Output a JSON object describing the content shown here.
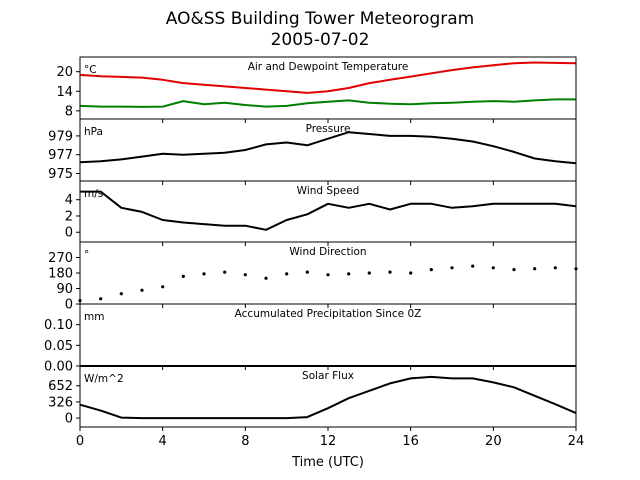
{
  "title": "AO&SS Building Tower Meteorogram",
  "subtitle": "2005-07-02",
  "xlabel": "Time (UTC)",
  "x_ticks": [
    "0",
    "4",
    "8",
    "12",
    "16",
    "20",
    "24"
  ],
  "colors": {
    "temperature": "#e00000",
    "dewpoint": "#008000",
    "line": "#000000"
  },
  "chart_data": [
    {
      "type": "line",
      "title": "Air and Dewpoint Temperature",
      "unit": "°C",
      "ylim": [
        5.5,
        24.5
      ],
      "yticks": [
        8,
        14,
        20
      ],
      "ytick_labels": [
        "8",
        "14",
        "20"
      ],
      "x": [
        0,
        1,
        2,
        3,
        4,
        5,
        6,
        7,
        8,
        9,
        10,
        11,
        12,
        13,
        14,
        15,
        16,
        17,
        18,
        19,
        20,
        21,
        22,
        23,
        24
      ],
      "series": [
        {
          "key": "temperature",
          "values": [
            19,
            18.6,
            18.4,
            18.2,
            17.5,
            16.5,
            16,
            15.5,
            15,
            14.5,
            14,
            13.5,
            14,
            15,
            16.5,
            17.5,
            18.5,
            19.5,
            20.5,
            21.3,
            22,
            22.6,
            22.8,
            22.7,
            22.6
          ]
        },
        {
          "key": "dewpoint",
          "values": [
            9.5,
            9.3,
            9.3,
            9.2,
            9.3,
            11,
            10,
            10.5,
            9.8,
            9.3,
            9.5,
            10.3,
            10.8,
            11.2,
            10.5,
            10.2,
            10,
            10.3,
            10.5,
            10.8,
            11,
            10.8,
            11.2,
            11.5,
            11.5
          ]
        }
      ]
    },
    {
      "type": "line",
      "title": "Pressure",
      "unit": "hPa",
      "ylim": [
        974.2,
        980.8
      ],
      "yticks": [
        975,
        977,
        979
      ],
      "ytick_labels": [
        "975",
        "977",
        "979"
      ],
      "x": [
        0,
        1,
        2,
        3,
        4,
        5,
        6,
        7,
        8,
        9,
        10,
        11,
        12,
        13,
        14,
        15,
        16,
        17,
        18,
        19,
        20,
        21,
        22,
        23,
        24
      ],
      "series": [
        {
          "key": "pressure",
          "values": [
            976.2,
            976.3,
            976.5,
            976.8,
            977.1,
            977.0,
            977.1,
            977.2,
            977.5,
            978.1,
            978.3,
            978.0,
            978.7,
            979.4,
            979.2,
            979.0,
            979.0,
            978.9,
            978.7,
            978.4,
            977.9,
            977.3,
            976.6,
            976.3,
            976.1
          ]
        }
      ]
    },
    {
      "type": "line",
      "title": "Wind Speed",
      "unit": "m/s",
      "ylim": [
        -1.2,
        6.3
      ],
      "yticks": [
        0,
        2,
        4
      ],
      "ytick_labels": [
        "0",
        "2",
        "4"
      ],
      "x": [
        0,
        1,
        2,
        3,
        4,
        5,
        6,
        7,
        8,
        9,
        10,
        11,
        12,
        13,
        14,
        15,
        16,
        17,
        18,
        19,
        20,
        21,
        22,
        23,
        24
      ],
      "series": [
        {
          "key": "wind_speed",
          "values": [
            5,
            5,
            3,
            2.5,
            1.5,
            1.2,
            1,
            0.8,
            0.8,
            0.3,
            1.5,
            2.2,
            3.5,
            3,
            3.5,
            2.8,
            3.5,
            3.5,
            3,
            3.2,
            3.5,
            3.5,
            3.5,
            3.5,
            3.2
          ]
        }
      ]
    },
    {
      "type": "scatter",
      "title": "Wind Direction",
      "unit": "°",
      "ylim": [
        0,
        360
      ],
      "yticks": [
        0,
        90,
        180,
        270
      ],
      "ytick_labels": [
        "0",
        "90",
        "180",
        "270"
      ],
      "x": [
        0,
        1,
        2,
        3,
        4,
        5,
        6,
        7,
        8,
        9,
        10,
        11,
        12,
        13,
        14,
        15,
        16,
        17,
        18,
        19,
        20,
        21,
        22,
        23,
        24
      ],
      "series": [
        {
          "key": "wind_direction",
          "values": [
            20,
            30,
            60,
            80,
            100,
            160,
            175,
            185,
            170,
            150,
            175,
            185,
            170,
            175,
            180,
            185,
            180,
            200,
            210,
            220,
            210,
            200,
            205,
            210,
            205
          ]
        }
      ]
    },
    {
      "type": "line",
      "title": "Accumulated Precipitation Since 0Z",
      "unit": "mm",
      "ylim": [
        0,
        0.15
      ],
      "yticks": [
        0,
        0.05,
        0.1
      ],
      "ytick_labels": [
        "0.00",
        "0.05",
        "0.10"
      ],
      "x": [
        0,
        24
      ],
      "series": [
        {
          "key": "precipitation",
          "values": [
            0,
            0
          ]
        }
      ]
    },
    {
      "type": "line",
      "title": "Solar Flux",
      "unit": "W/m^2",
      "ylim": [
        -180,
        1050
      ],
      "yticks": [
        0,
        326,
        652
      ],
      "ytick_labels": [
        "0",
        "326",
        "652"
      ],
      "x": [
        0,
        1,
        2,
        3,
        4,
        5,
        6,
        7,
        8,
        9,
        10,
        11,
        12,
        13,
        14,
        15,
        16,
        17,
        18,
        19,
        20,
        21,
        22,
        23,
        24
      ],
      "series": [
        {
          "key": "solar_flux",
          "values": [
            270,
            150,
            10,
            0,
            0,
            0,
            0,
            0,
            0,
            0,
            0,
            20,
            200,
            400,
            550,
            700,
            800,
            830,
            800,
            800,
            720,
            620,
            450,
            280,
            100
          ]
        }
      ]
    }
  ]
}
